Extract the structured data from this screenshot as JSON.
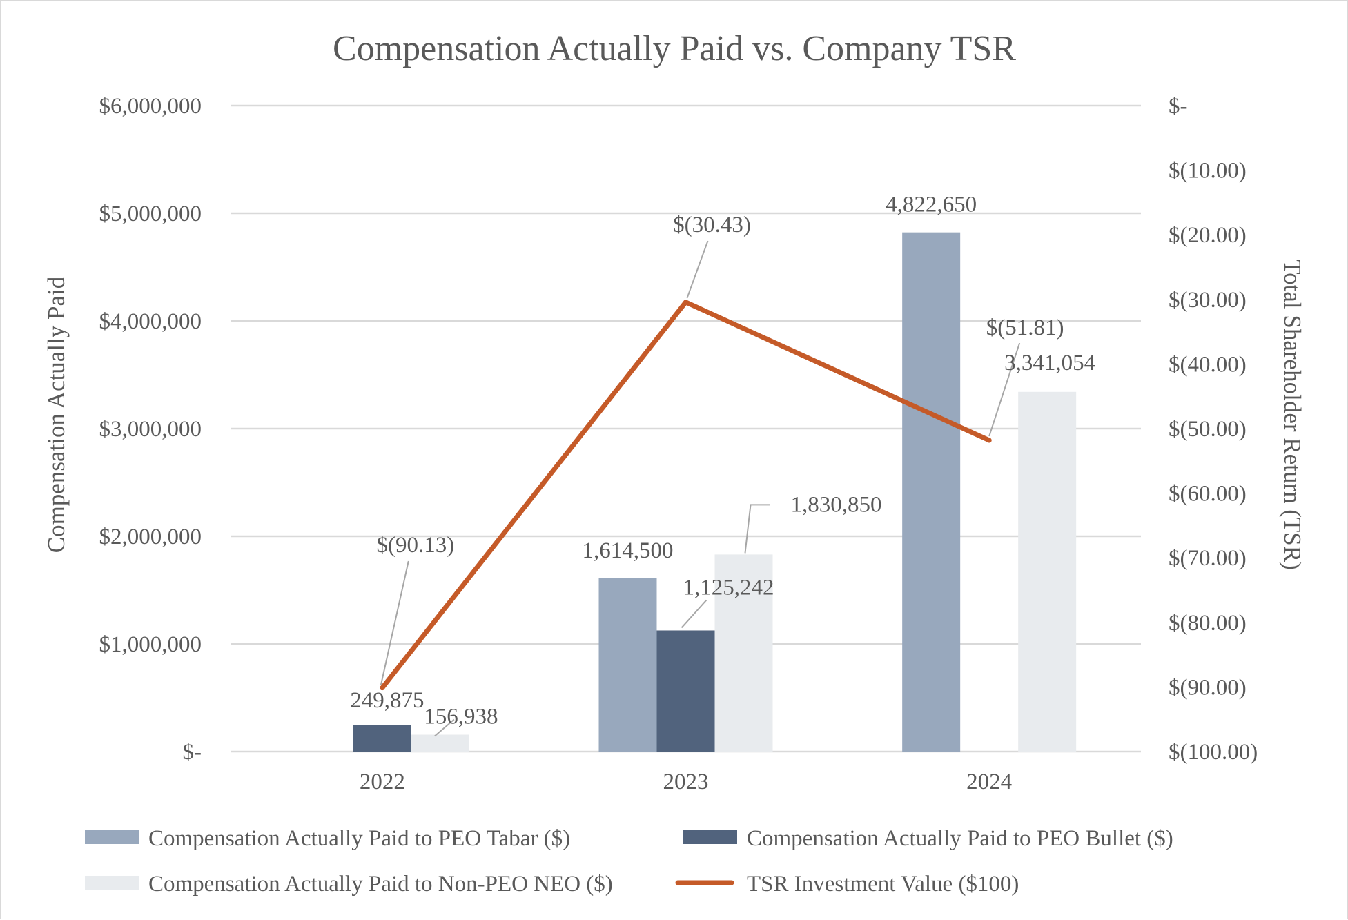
{
  "chart_data": {
    "type": "bar",
    "title": "Compensation Actually Paid vs. Company TSR",
    "categories": [
      "2022",
      "2023",
      "2024"
    ],
    "ylabel": "Compensation Actually Paid",
    "y2label": "Total Shareholder Return (TSR)",
    "ylim": [
      0,
      6000000
    ],
    "y2lim": [
      -100,
      0
    ],
    "yticks": [
      {
        "value": 6000000,
        "label": "$6,000,000"
      },
      {
        "value": 5000000,
        "label": "$5,000,000"
      },
      {
        "value": 4000000,
        "label": "$4,000,000"
      },
      {
        "value": 3000000,
        "label": "$3,000,000"
      },
      {
        "value": 2000000,
        "label": "$2,000,000"
      },
      {
        "value": 1000000,
        "label": "$1,000,000"
      },
      {
        "value": 0,
        "label": "$-"
      }
    ],
    "y2ticks": [
      {
        "value": 0,
        "label": "$-"
      },
      {
        "value": -10,
        "label": "$(10.00)"
      },
      {
        "value": -20,
        "label": "$(20.00)"
      },
      {
        "value": -30,
        "label": "$(30.00)"
      },
      {
        "value": -40,
        "label": "$(40.00)"
      },
      {
        "value": -50,
        "label": "$(50.00)"
      },
      {
        "value": -60,
        "label": "$(60.00)"
      },
      {
        "value": -70,
        "label": "$(70.00)"
      },
      {
        "value": -80,
        "label": "$(80.00)"
      },
      {
        "value": -90,
        "label": "$(90.00)"
      },
      {
        "value": -100,
        "label": "$(100.00)"
      }
    ],
    "grid": true,
    "legend_position": "bottom",
    "series": [
      {
        "name": "Compensation Actually Paid to PEO Tabar ($)",
        "kind": "bar",
        "color": "#98a8bd",
        "values": [
          null,
          1614500,
          4822650
        ],
        "labels": [
          null,
          "1,614,500",
          "4,822,650"
        ]
      },
      {
        "name": "Compensation Actually Paid to PEO Bullet ($)",
        "kind": "bar",
        "color": "#51637d",
        "values": [
          249875,
          1125242,
          null
        ],
        "labels": [
          "249,875",
          "1,125,242",
          null
        ]
      },
      {
        "name": "Compensation Actually Paid to Non-PEO NEO ($)",
        "kind": "bar",
        "color": "#e8ebee",
        "values": [
          156938,
          1830850,
          3341054
        ],
        "labels": [
          "156,938",
          "1,830,850",
          "3,341,054"
        ]
      },
      {
        "name": "TSR Investment Value ($100)",
        "kind": "line",
        "axis": "secondary",
        "color": "#c55a28",
        "values": [
          -90.13,
          -30.43,
          -51.81
        ],
        "labels": [
          "$(90.13)",
          "$(30.43)",
          "$(51.81)"
        ]
      }
    ]
  }
}
